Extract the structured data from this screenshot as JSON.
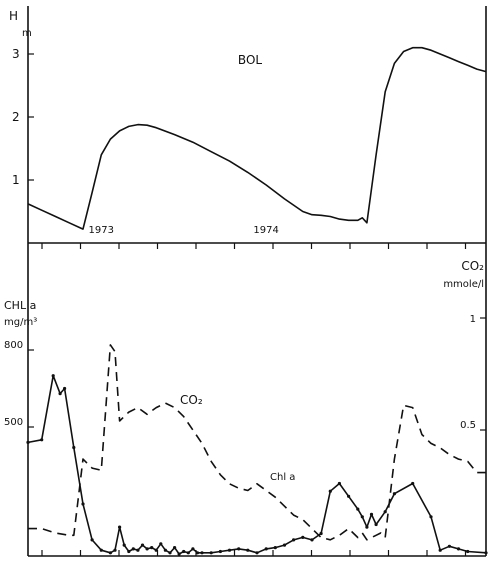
{
  "chart_data": [
    {
      "type": "line",
      "title": "BOL",
      "ylabel": "H m",
      "ylabel_main": "H",
      "ylabel_unit": "m",
      "ylim": [
        0,
        3.3
      ],
      "yticks": [
        1,
        2,
        3
      ],
      "ytick_labels": [
        "1",
        "2",
        "3"
      ],
      "xlim": [
        0,
        100
      ],
      "year_labels": [
        {
          "x": 16,
          "label": "1973"
        },
        {
          "x": 52,
          "label": "1974"
        }
      ],
      "series": [
        {
          "x": [
            0,
            3,
            6,
            9,
            12,
            14,
            16,
            18,
            20,
            22,
            24,
            26,
            28,
            32,
            36,
            40,
            44,
            48,
            52,
            56,
            60,
            62,
            64,
            66,
            68,
            70,
            72,
            73,
            74,
            76,
            78,
            80,
            82,
            84,
            86,
            88,
            90,
            92,
            94,
            96,
            98,
            100
          ],
          "values": [
            0.62,
            0.52,
            0.42,
            0.32,
            0.22,
            0.8,
            1.4,
            1.65,
            1.78,
            1.85,
            1.88,
            1.87,
            1.83,
            1.72,
            1.6,
            1.45,
            1.3,
            1.12,
            0.92,
            0.7,
            0.5,
            0.45,
            0.44,
            0.42,
            0.38,
            0.36,
            0.36,
            0.4,
            0.32,
            1.4,
            2.4,
            2.85,
            3.04,
            3.1,
            3.1,
            3.06,
            3.0,
            2.94,
            2.88,
            2.82,
            2.76,
            2.72
          ]
        }
      ]
    },
    {
      "type": "line",
      "left_axis_label": "CHL a",
      "left_axis_unit": "mg/m³",
      "right_axis_label": "CO₂",
      "right_axis_unit": "mmole/l",
      "left_ylim": [
        0,
        1600
      ],
      "left_ytick_labels": [
        {
          "value": 500,
          "label": "500"
        },
        {
          "value": 800,
          "label": "800"
        }
      ],
      "right_ylim": [
        0,
        1.0
      ],
      "right_ytick_labels": [
        {
          "value": 0.5,
          "label": "0.5"
        },
        {
          "value": 1.0,
          "label": "1"
        }
      ],
      "xlim": [
        0,
        100
      ],
      "annotations": [
        {
          "x": 34,
          "label": "CO₂",
          "series": "CO2"
        },
        {
          "x": 54,
          "label": "Chl a",
          "series": "Chl a"
        }
      ],
      "series": [
        {
          "name": "Chl a",
          "axis": "left",
          "style": "solid",
          "x": [
            0,
            3,
            5.5,
            7,
            8,
            10,
            12,
            14,
            16,
            18,
            19,
            20,
            21,
            22,
            23,
            24,
            25,
            26,
            27,
            28,
            29,
            30,
            31,
            32,
            33,
            34,
            35,
            36,
            37,
            38,
            40,
            42,
            44,
            46,
            48,
            50,
            52,
            54,
            56,
            58,
            60,
            62,
            64,
            66,
            68,
            70,
            72,
            73,
            74,
            75,
            76,
            78,
            80,
            84,
            88,
            90,
            92,
            94,
            96,
            100
          ],
          "values": [
            440,
            450,
            700,
            630,
            650,
            420,
            200,
            60,
            20,
            10,
            20,
            110,
            40,
            15,
            25,
            20,
            40,
            25,
            30,
            20,
            45,
            20,
            10,
            30,
            5,
            15,
            10,
            25,
            10,
            10,
            10,
            15,
            20,
            25,
            20,
            10,
            25,
            30,
            40,
            60,
            70,
            60,
            85,
            250,
            280,
            230,
            180,
            150,
            110,
            160,
            120,
            170,
            240,
            280,
            150,
            20,
            35,
            25,
            15,
            10
          ]
        },
        {
          "name": "CO2",
          "axis": "right",
          "style": "dashed",
          "x": [
            0,
            3,
            6,
            9,
            10,
            12,
            14,
            16,
            18,
            19,
            20,
            22,
            24,
            26,
            28,
            30,
            32,
            34,
            36,
            38,
            40,
            42,
            44,
            46,
            48,
            50,
            52,
            54,
            56,
            58,
            60,
            62,
            64,
            66,
            68,
            70,
            72,
            73,
            74,
            76,
            77,
            78,
            80,
            82,
            84,
            86,
            88,
            90,
            92,
            94,
            96,
            98,
            100
          ],
          "values": [
            0.06,
            0.06,
            0.04,
            0.03,
            0.03,
            0.37,
            0.33,
            0.32,
            0.88,
            0.85,
            0.54,
            0.58,
            0.6,
            0.57,
            0.6,
            0.62,
            0.6,
            0.56,
            0.5,
            0.44,
            0.36,
            0.3,
            0.26,
            0.24,
            0.23,
            0.26,
            0.23,
            0.2,
            0.16,
            0.12,
            0.1,
            0.06,
            0.02,
            0.01,
            0.03,
            0.06,
            0.02,
            0.04,
            0.01,
            0.03,
            0.04,
            0.02,
            0.37,
            0.61,
            0.6,
            0.48,
            0.44,
            0.42,
            0.39,
            0.37,
            0.36,
            0.31,
            0.31
          ]
        }
      ]
    }
  ]
}
